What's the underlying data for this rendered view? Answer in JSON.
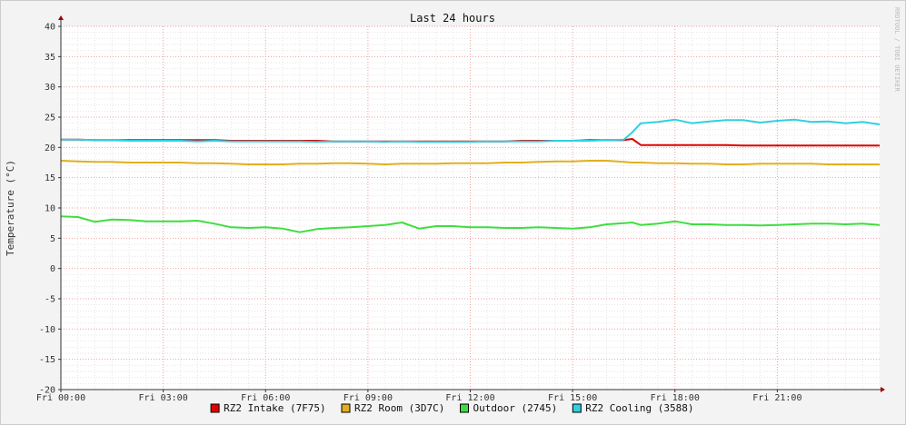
{
  "chart_data": {
    "type": "line",
    "title": "Last 24 hours",
    "ylabel": "Temperature (°C)",
    "xlabel": "",
    "watermark": "RRDTOOL / TOBI OETIKER",
    "ylim": [
      -20,
      40
    ],
    "y_ticks": [
      40,
      35,
      30,
      25,
      20,
      15,
      10,
      5,
      0,
      -5,
      -10,
      -15,
      -20
    ],
    "x_range_hours": [
      0,
      24
    ],
    "x_ticks": [
      {
        "hour": 0,
        "label": "Fri 00:00"
      },
      {
        "hour": 3,
        "label": "Fri 03:00"
      },
      {
        "hour": 6,
        "label": "Fri 06:00"
      },
      {
        "hour": 9,
        "label": "Fri 09:00"
      },
      {
        "hour": 12,
        "label": "Fri 12:00"
      },
      {
        "hour": 15,
        "label": "Fri 15:00"
      },
      {
        "hour": 18,
        "label": "Fri 18:00"
      },
      {
        "hour": 21,
        "label": "Fri 21:00"
      }
    ],
    "grid": true,
    "legend_position": "bottom",
    "x": [
      0,
      0.5,
      1,
      1.5,
      2,
      2.5,
      3,
      3.5,
      4,
      4.5,
      5,
      5.5,
      6,
      6.5,
      7,
      7.5,
      8,
      8.5,
      9,
      9.5,
      10,
      10.5,
      11,
      11.5,
      12,
      12.5,
      13,
      13.5,
      14,
      14.5,
      15,
      15.5,
      16,
      16.5,
      16.75,
      17,
      17.5,
      18,
      18.5,
      19,
      19.5,
      20,
      20.5,
      21,
      21.5,
      22,
      22.5,
      23,
      23.5,
      24
    ],
    "series": [
      {
        "name": "RZ2 Intake (7F75)",
        "color": "#e00000",
        "values": [
          21.3,
          21.3,
          21.2,
          21.2,
          21.2,
          21.2,
          21.2,
          21.2,
          21.2,
          21.2,
          21.1,
          21.1,
          21.1,
          21.1,
          21.1,
          21.1,
          21.0,
          21.0,
          21.0,
          21.0,
          21.0,
          21.0,
          21.0,
          21.0,
          21.0,
          21.0,
          21.0,
          21.1,
          21.1,
          21.1,
          21.1,
          21.2,
          21.2,
          21.2,
          21.4,
          20.4,
          20.4,
          20.4,
          20.4,
          20.4,
          20.4,
          20.3,
          20.3,
          20.3,
          20.3,
          20.3,
          20.3,
          20.3,
          20.3,
          20.3
        ]
      },
      {
        "name": "RZ2 Room (3D7C)",
        "color": "#e0b020",
        "values": [
          17.8,
          17.7,
          17.6,
          17.6,
          17.5,
          17.5,
          17.5,
          17.5,
          17.4,
          17.4,
          17.3,
          17.2,
          17.2,
          17.2,
          17.3,
          17.3,
          17.4,
          17.4,
          17.3,
          17.2,
          17.3,
          17.3,
          17.3,
          17.4,
          17.4,
          17.4,
          17.5,
          17.5,
          17.6,
          17.7,
          17.7,
          17.8,
          17.8,
          17.6,
          17.5,
          17.5,
          17.4,
          17.4,
          17.3,
          17.3,
          17.2,
          17.2,
          17.3,
          17.3,
          17.3,
          17.3,
          17.2,
          17.2,
          17.2,
          17.2
        ]
      },
      {
        "name": "Outdoor (2745)",
        "color": "#40dd40",
        "values": [
          8.6,
          8.5,
          7.7,
          8.1,
          8.0,
          7.8,
          7.8,
          7.8,
          7.9,
          7.4,
          6.8,
          6.7,
          6.8,
          6.6,
          6.0,
          6.5,
          6.7,
          6.8,
          7.0,
          7.2,
          7.6,
          6.6,
          7.0,
          7.0,
          6.8,
          6.8,
          6.7,
          6.7,
          6.8,
          6.7,
          6.6,
          6.8,
          7.3,
          7.5,
          7.6,
          7.2,
          7.4,
          7.8,
          7.3,
          7.3,
          7.2,
          7.2,
          7.1,
          7.2,
          7.3,
          7.4,
          7.4,
          7.3,
          7.4,
          7.2
        ]
      },
      {
        "name": "RZ2 Cooling (3588)",
        "color": "#30d0e0",
        "values": [
          21.3,
          21.3,
          21.2,
          21.2,
          21.1,
          21.1,
          21.1,
          21.1,
          21.0,
          21.1,
          21.0,
          21.0,
          21.0,
          21.0,
          21.0,
          20.9,
          21.0,
          21.0,
          21.0,
          20.9,
          21.0,
          20.9,
          20.9,
          20.9,
          20.9,
          21.0,
          21.0,
          21.0,
          21.0,
          21.1,
          21.1,
          21.1,
          21.2,
          21.3,
          22.5,
          24.0,
          24.2,
          24.6,
          24.0,
          24.3,
          24.5,
          24.5,
          24.1,
          24.4,
          24.6,
          24.2,
          24.3,
          24.0,
          24.2,
          23.8
        ]
      }
    ]
  }
}
